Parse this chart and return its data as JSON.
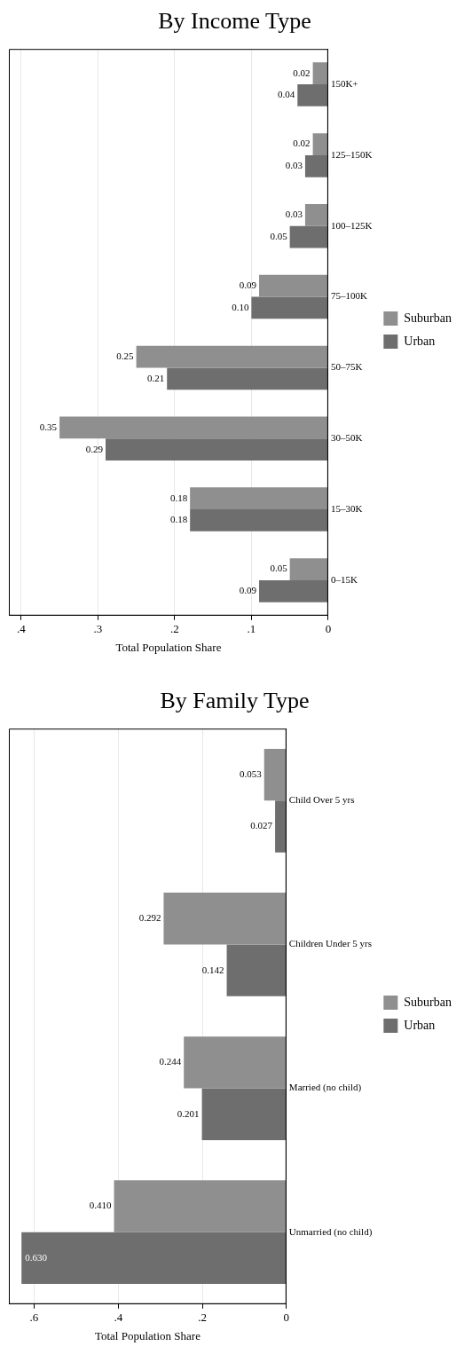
{
  "chart_data": [
    {
      "type": "bar",
      "orientation": "horizontal",
      "title": "By Family Type",
      "xlabel": "Total Population Share",
      "categories": [
        "Child Over 5 yrs",
        "Children Under 5 yrs",
        "Married (no child)",
        "Unmarried (no child)"
      ],
      "series": [
        {
          "name": "Suburban",
          "color": "#8f8f8f",
          "values": [
            0.053,
            0.292,
            0.244,
            0.41
          ],
          "value_labels": [
            "0.053",
            "0.292",
            "0.244",
            "0.410"
          ]
        },
        {
          "name": "Urban",
          "color": "#6e6e6e",
          "values": [
            0.027,
            0.142,
            0.201,
            0.63
          ],
          "value_labels": [
            "0.027",
            "0.142",
            "0.201",
            "0.630"
          ]
        }
      ],
      "xlim": [
        0.66,
        0
      ],
      "xticks": [
        0,
        {
          "value": 0.2,
          "label": ".2"
        },
        {
          "value": 0.4,
          "label": ".4"
        },
        {
          "value": 0.6,
          "label": ".6"
        }
      ],
      "grid": "x",
      "legend": "right"
    },
    {
      "type": "bar",
      "orientation": "horizontal",
      "title": "By Income Type",
      "xlabel": "Total Population Share",
      "categories": [
        "150K+",
        "125–150K",
        "100–125K",
        "75–100K",
        "50–75K",
        "30–50K",
        "15–30K",
        "0–15K"
      ],
      "series": [
        {
          "name": "Suburban",
          "color": "#8f8f8f",
          "values": [
            0.02,
            0.02,
            0.03,
            0.09,
            0.25,
            0.35,
            0.18,
            0.05
          ],
          "value_labels": [
            "0.02",
            "0.02",
            "0.03",
            "0.09",
            "0.25",
            "0.35",
            "0.18",
            "0.05"
          ]
        },
        {
          "name": "Urban",
          "color": "#6e6e6e",
          "values": [
            0.04,
            0.03,
            0.05,
            0.1,
            0.21,
            0.29,
            0.18,
            0.09
          ],
          "value_labels": [
            "0.04",
            "0.03",
            "0.05",
            "0.10",
            "0.21",
            "0.29",
            "0.18",
            "0.09"
          ]
        }
      ],
      "xlim": [
        0.416,
        0
      ],
      "xticks": [
        0,
        {
          "value": 0.1,
          "label": ".1"
        },
        {
          "value": 0.2,
          "label": ".2"
        },
        {
          "value": 0.3,
          "label": ".3"
        },
        {
          "value": 0.4,
          "label": ".4"
        }
      ],
      "grid": "x",
      "legend": "right"
    }
  ]
}
